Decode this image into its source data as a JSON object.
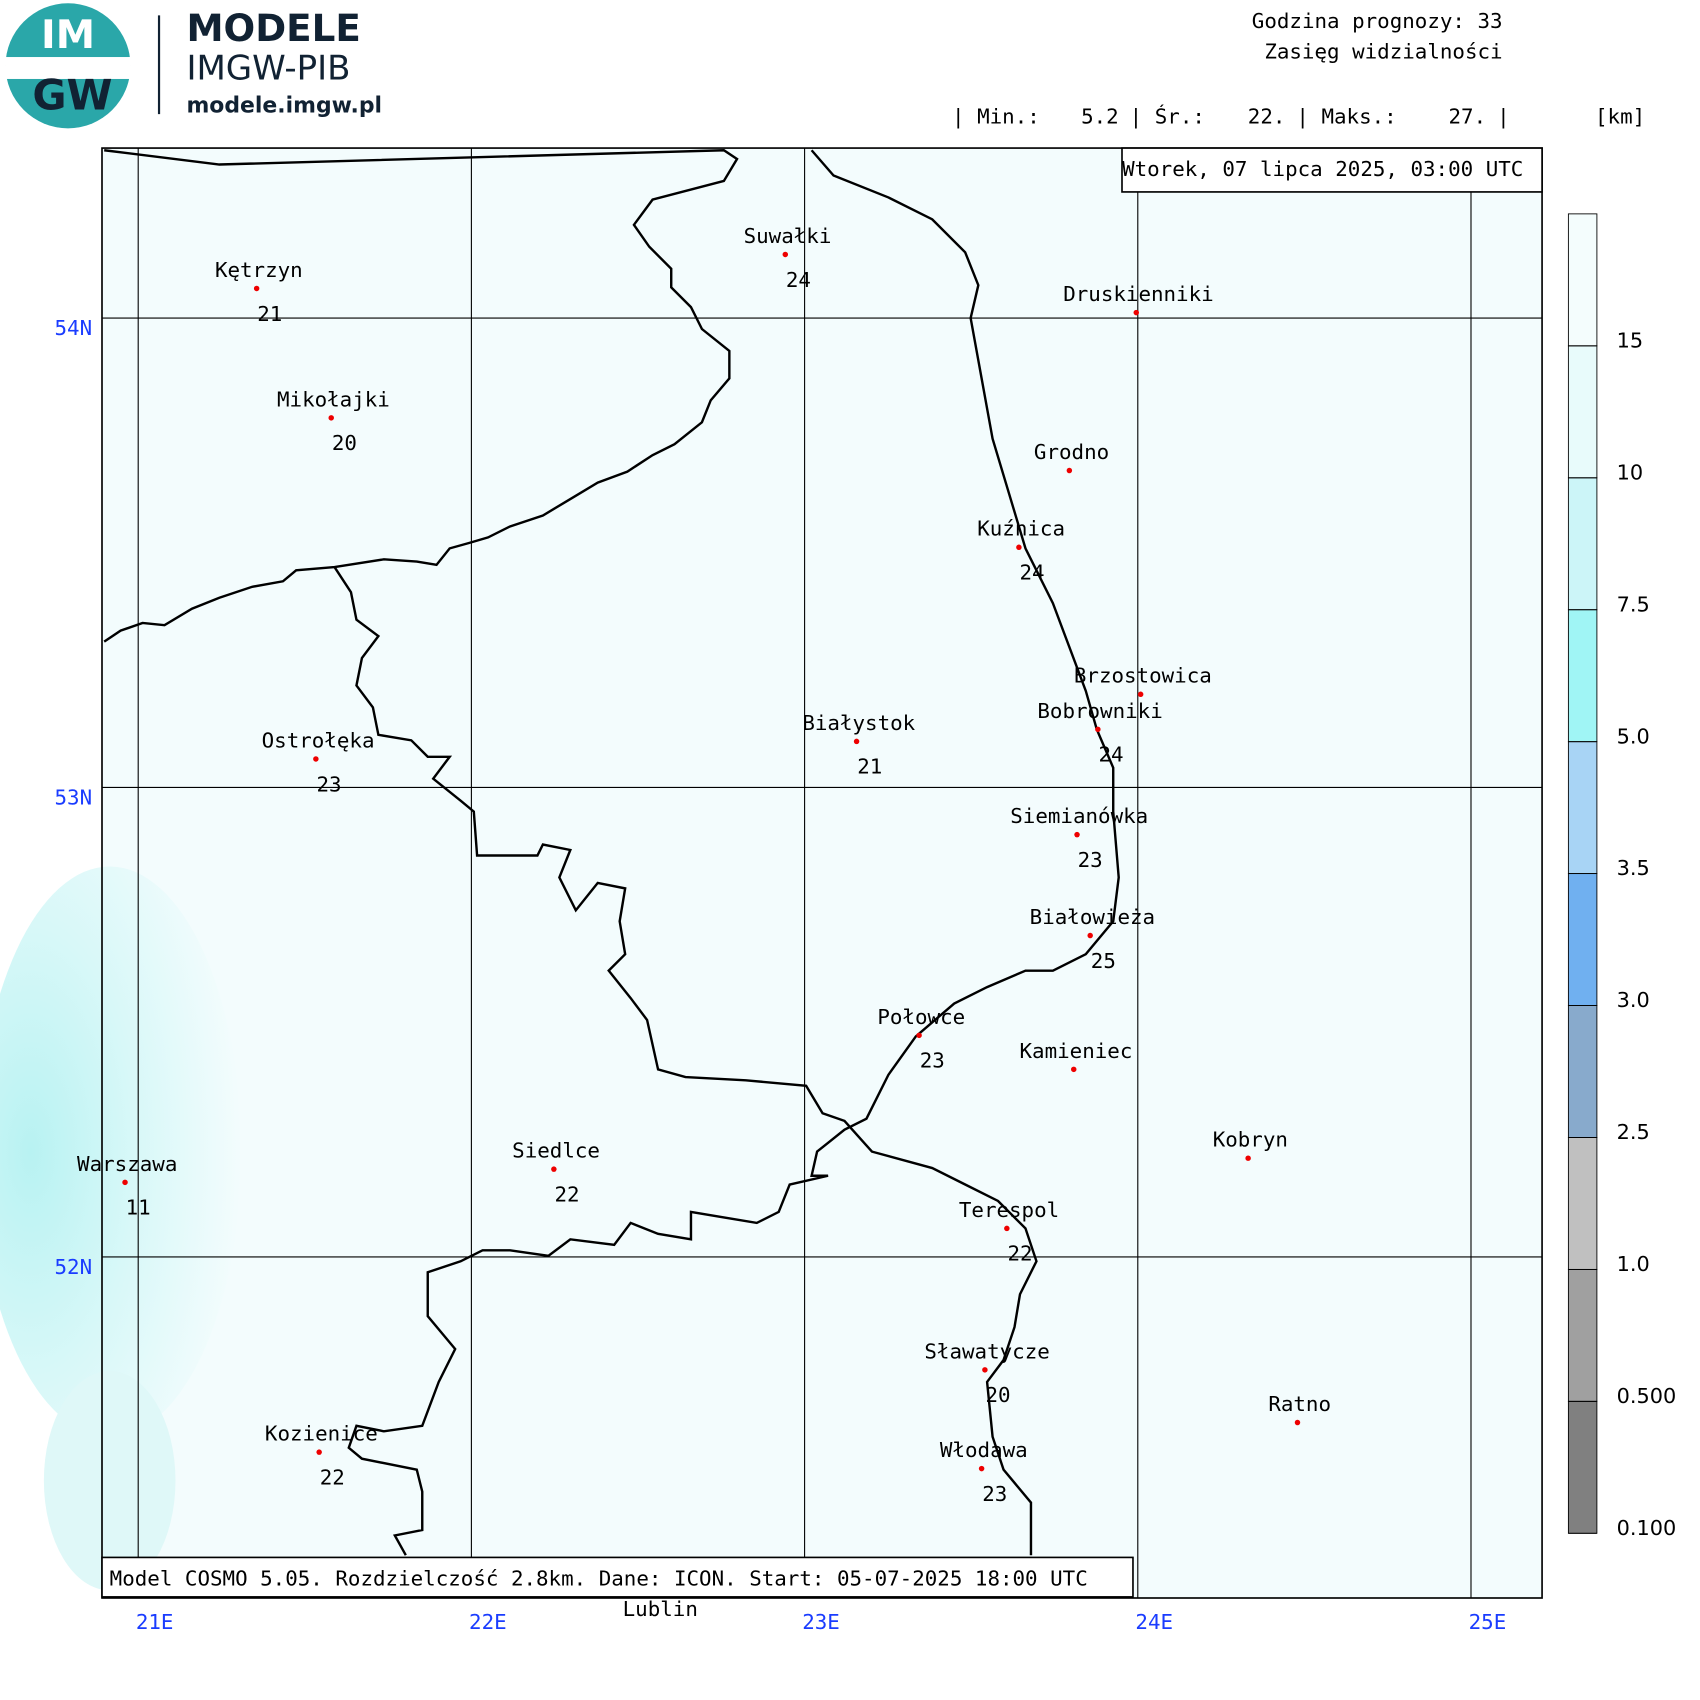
{
  "header": {
    "logo_top": "IM",
    "logo_bottom": "GW",
    "brand": "MODELE",
    "brand_sub": "IMGW-PIB",
    "url": "modele.imgw.pl",
    "forecast_hour": "Godzina prognozy: 33",
    "field": "Zasięg widzialności",
    "stats": {
      "min_label": "| Min.:",
      "min": "5.2",
      "mean_label": "| Śr.:",
      "mean": "22.",
      "max_label": "| Maks.:",
      "max": "27.",
      "end": "|",
      "unit": "[km]"
    }
  },
  "map": {
    "valid_time": "Wtorek, 07 lipca 2025, 03:00 UTC",
    "footer": "Model COSMO 5.05. Rozdzielczość 2.8km. Dane: ICON. Start: 05-07-2025 18:00 UTC",
    "lon_ticks": [
      {
        "value": 21,
        "label": "21E"
      },
      {
        "value": 22,
        "label": "22E"
      },
      {
        "value": 23,
        "label": "23E"
      },
      {
        "value": 24,
        "label": "24E"
      },
      {
        "value": 25,
        "label": "25E"
      }
    ],
    "lat_ticks": [
      {
        "value": 54,
        "label": "54N"
      },
      {
        "value": 53,
        "label": "53N"
      },
      {
        "value": 52,
        "label": "52N"
      }
    ],
    "cities": [
      {
        "name": "Kętrzyn",
        "value": 21
      },
      {
        "name": "Suwałki",
        "value": 24
      },
      {
        "name": "Druskienniki"
      },
      {
        "name": "Mikołajki",
        "value": 20
      },
      {
        "name": "Grodno"
      },
      {
        "name": "Kuźnica",
        "value": 24
      },
      {
        "name": "Brzostowica"
      },
      {
        "name": "Bobrowniki",
        "value": 24
      },
      {
        "name": "Ostrołęka",
        "value": 23
      },
      {
        "name": "Białystok",
        "value": 21
      },
      {
        "name": "Siemianówka",
        "value": 23
      },
      {
        "name": "Białowieża",
        "value": 25
      },
      {
        "name": "Połowce",
        "value": 23
      },
      {
        "name": "Kamieniec"
      },
      {
        "name": "Kobryn"
      },
      {
        "name": "Warszawa",
        "value": 11
      },
      {
        "name": "Siedlce",
        "value": 22
      },
      {
        "name": "Terespol",
        "value": 22
      },
      {
        "name": "Sławatycze",
        "value": 20
      },
      {
        "name": "Ratno"
      },
      {
        "name": "Kozienice",
        "value": 22
      },
      {
        "name": "Włodawa",
        "value": 23
      },
      {
        "name": "Lublin"
      }
    ],
    "colorbar": {
      "ticks": [
        {
          "value": 0.1,
          "label": "0.100"
        },
        {
          "value": 0.5,
          "label": "0.500"
        },
        {
          "value": 1,
          "label": "1.0"
        },
        2.5,
        {
          "value": 3,
          "label": "3.0"
        },
        3.5,
        {
          "value": 5,
          "label": "5.0"
        },
        7.5,
        10,
        15
      ],
      "colors": [
        "#808080",
        "#a0a0a0",
        "#c0c0c0",
        "#88aacc",
        "#70b0f0",
        "#a8d4f5",
        "#a0f5f5",
        "#ccf5f8",
        "#e8fbfb",
        "#f4fdfd"
      ]
    }
  }
}
